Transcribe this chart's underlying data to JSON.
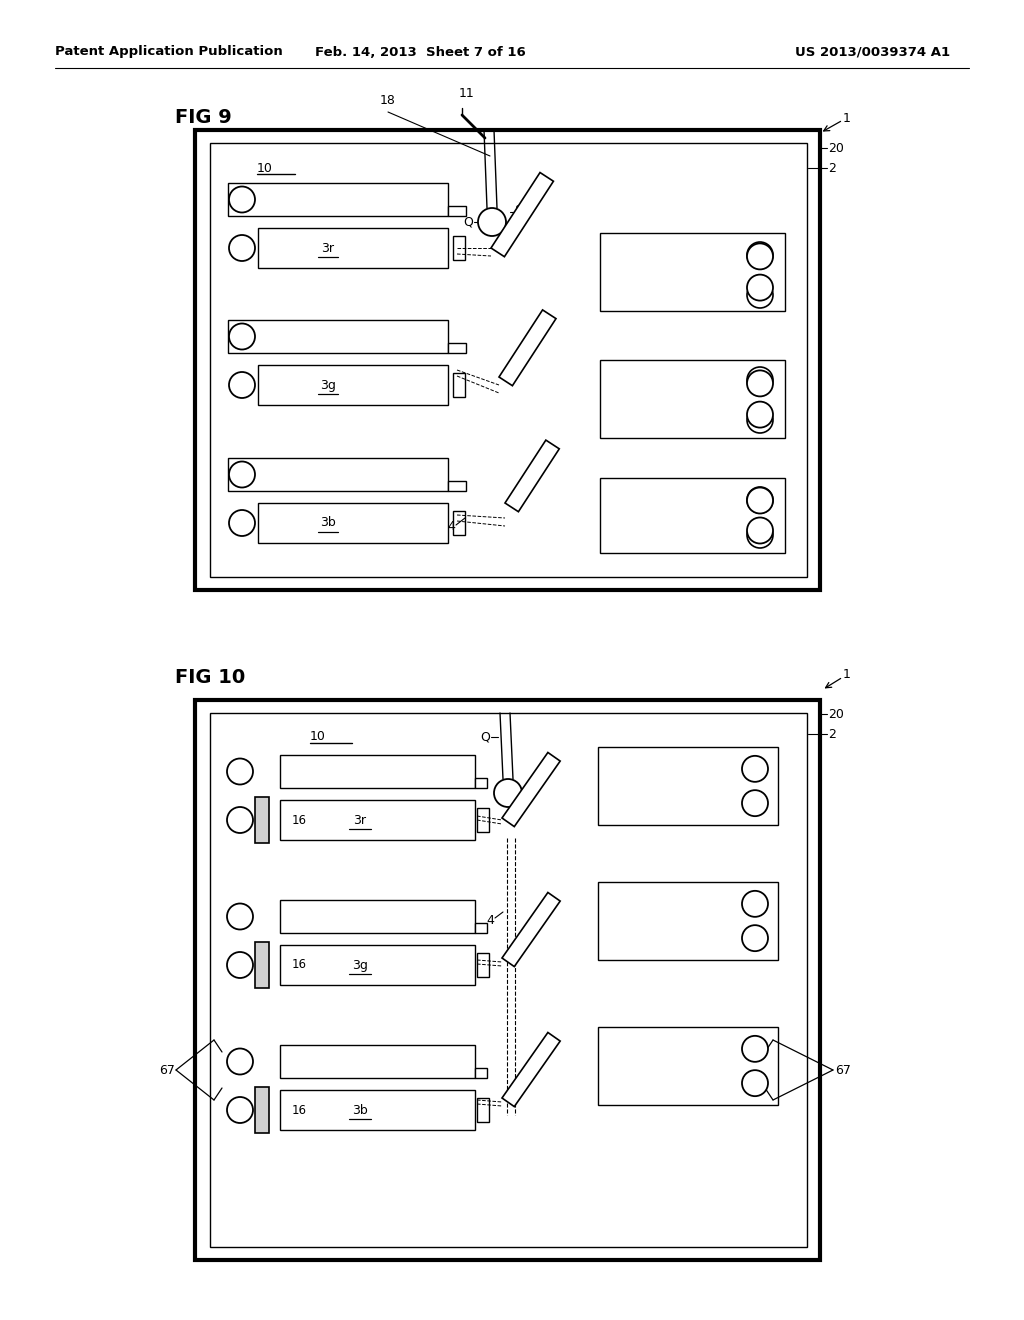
{
  "bg_color": "#ffffff",
  "line_color": "#000000",
  "header_left": "Patent Application Publication",
  "header_mid": "Feb. 14, 2013  Sheet 7 of 16",
  "header_right": "US 2013/0039374 A1"
}
